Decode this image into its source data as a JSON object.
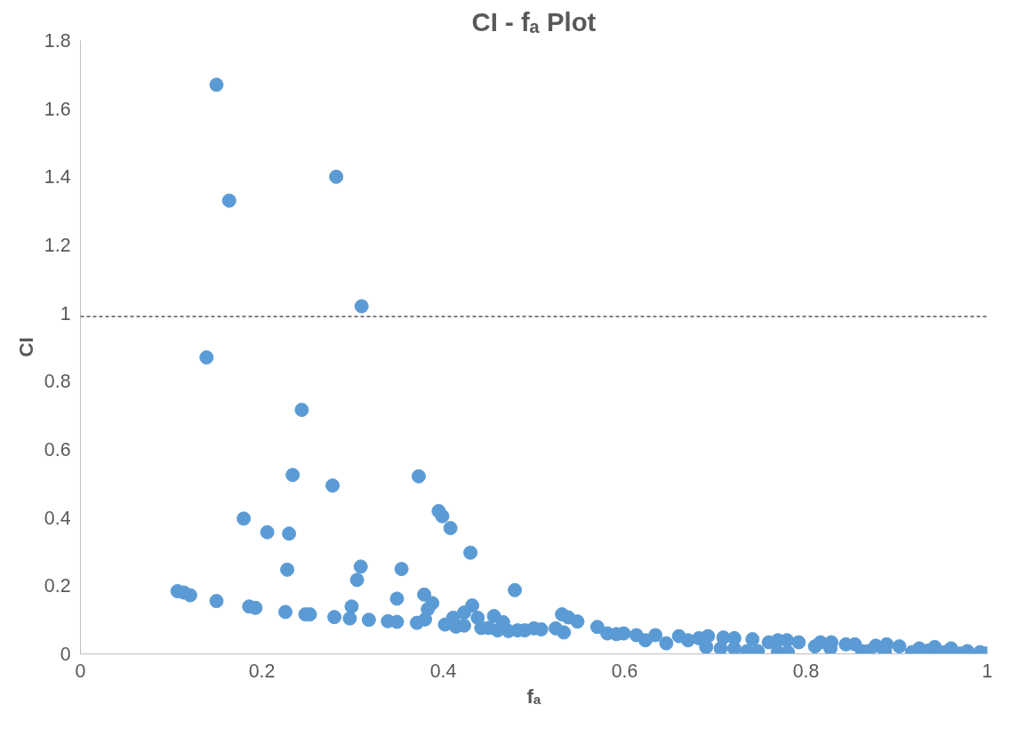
{
  "chart_data": {
    "type": "scatter",
    "title": "CI - fₐ Plot",
    "xlabel": "fₐ",
    "ylabel": "CI",
    "xlim": [
      0,
      1
    ],
    "xticks": [
      0,
      0.2,
      0.4,
      0.6,
      0.8,
      1
    ],
    "ylim": [
      0,
      1.8
    ],
    "yticks": [
      0,
      0.2,
      0.4,
      0.6,
      0.8,
      1,
      1.2,
      1.4,
      1.6,
      1.8
    ],
    "grid": false,
    "marker": "circle",
    "ref_lines": [
      {
        "axis": "y",
        "value": 0.99,
        "color": "#000000",
        "line_style": "dashed"
      }
    ],
    "series": [
      {
        "color": "#5b9bd5",
        "x": [
          0.15,
          0.164,
          0.282,
          0.31,
          0.139,
          0.244,
          0.234,
          0.278,
          0.373,
          0.18,
          0.206,
          0.23,
          0.395,
          0.399,
          0.408,
          0.43,
          0.228,
          0.309,
          0.305,
          0.354,
          0.349,
          0.379,
          0.388,
          0.383,
          0.38,
          0.371,
          0.107,
          0.114,
          0.121,
          0.15,
          0.186,
          0.193,
          0.226,
          0.248,
          0.253,
          0.28,
          0.299,
          0.297,
          0.318,
          0.339,
          0.349,
          0.402,
          0.411,
          0.414,
          0.423,
          0.423,
          0.432,
          0.438,
          0.442,
          0.45,
          0.456,
          0.479,
          0.466,
          0.46,
          0.472,
          0.482,
          0.49,
          0.5,
          0.508,
          0.524,
          0.531,
          0.538,
          0.548,
          0.533,
          0.57,
          0.581,
          0.591,
          0.599,
          0.613,
          0.623,
          0.634,
          0.646,
          0.66,
          0.67,
          0.682,
          0.69,
          0.692,
          0.706,
          0.709,
          0.721,
          0.721,
          0.735,
          0.741,
          0.747,
          0.759,
          0.769,
          0.769,
          0.78,
          0.779,
          0.792,
          0.81,
          0.816,
          0.827,
          0.828,
          0.844,
          0.854,
          0.862,
          0.869,
          0.877,
          0.887,
          0.889,
          0.903,
          0.917,
          0.925,
          0.935,
          0.942,
          0.953,
          0.96,
          0.97,
          0.978,
          0.992,
          0.998
        ],
        "values": [
          1.67,
          1.33,
          1.4,
          1.02,
          0.87,
          0.716,
          0.525,
          0.494,
          0.521,
          0.397,
          0.357,
          0.353,
          0.419,
          0.404,
          0.369,
          0.297,
          0.247,
          0.256,
          0.217,
          0.249,
          0.162,
          0.174,
          0.149,
          0.131,
          0.101,
          0.091,
          0.184,
          0.18,
          0.172,
          0.155,
          0.139,
          0.135,
          0.123,
          0.116,
          0.116,
          0.108,
          0.139,
          0.104,
          0.1,
          0.096,
          0.094,
          0.086,
          0.106,
          0.08,
          0.121,
          0.083,
          0.142,
          0.106,
          0.076,
          0.076,
          0.111,
          0.187,
          0.093,
          0.069,
          0.067,
          0.069,
          0.069,
          0.075,
          0.072,
          0.075,
          0.116,
          0.107,
          0.095,
          0.063,
          0.079,
          0.06,
          0.058,
          0.06,
          0.055,
          0.04,
          0.055,
          0.031,
          0.052,
          0.04,
          0.046,
          0.02,
          0.052,
          0.016,
          0.048,
          0.016,
          0.046,
          0.008,
          0.043,
          0.008,
          0.034,
          0.005,
          0.04,
          0.005,
          0.04,
          0.034,
          0.022,
          0.034,
          0.016,
          0.034,
          0.028,
          0.028,
          0.008,
          0.008,
          0.024,
          0.008,
          0.028,
          0.022,
          0.005,
          0.016,
          0.01,
          0.02,
          0.005,
          0.016,
          0.001,
          0.008,
          0.005,
          0.001
        ]
      }
    ]
  }
}
